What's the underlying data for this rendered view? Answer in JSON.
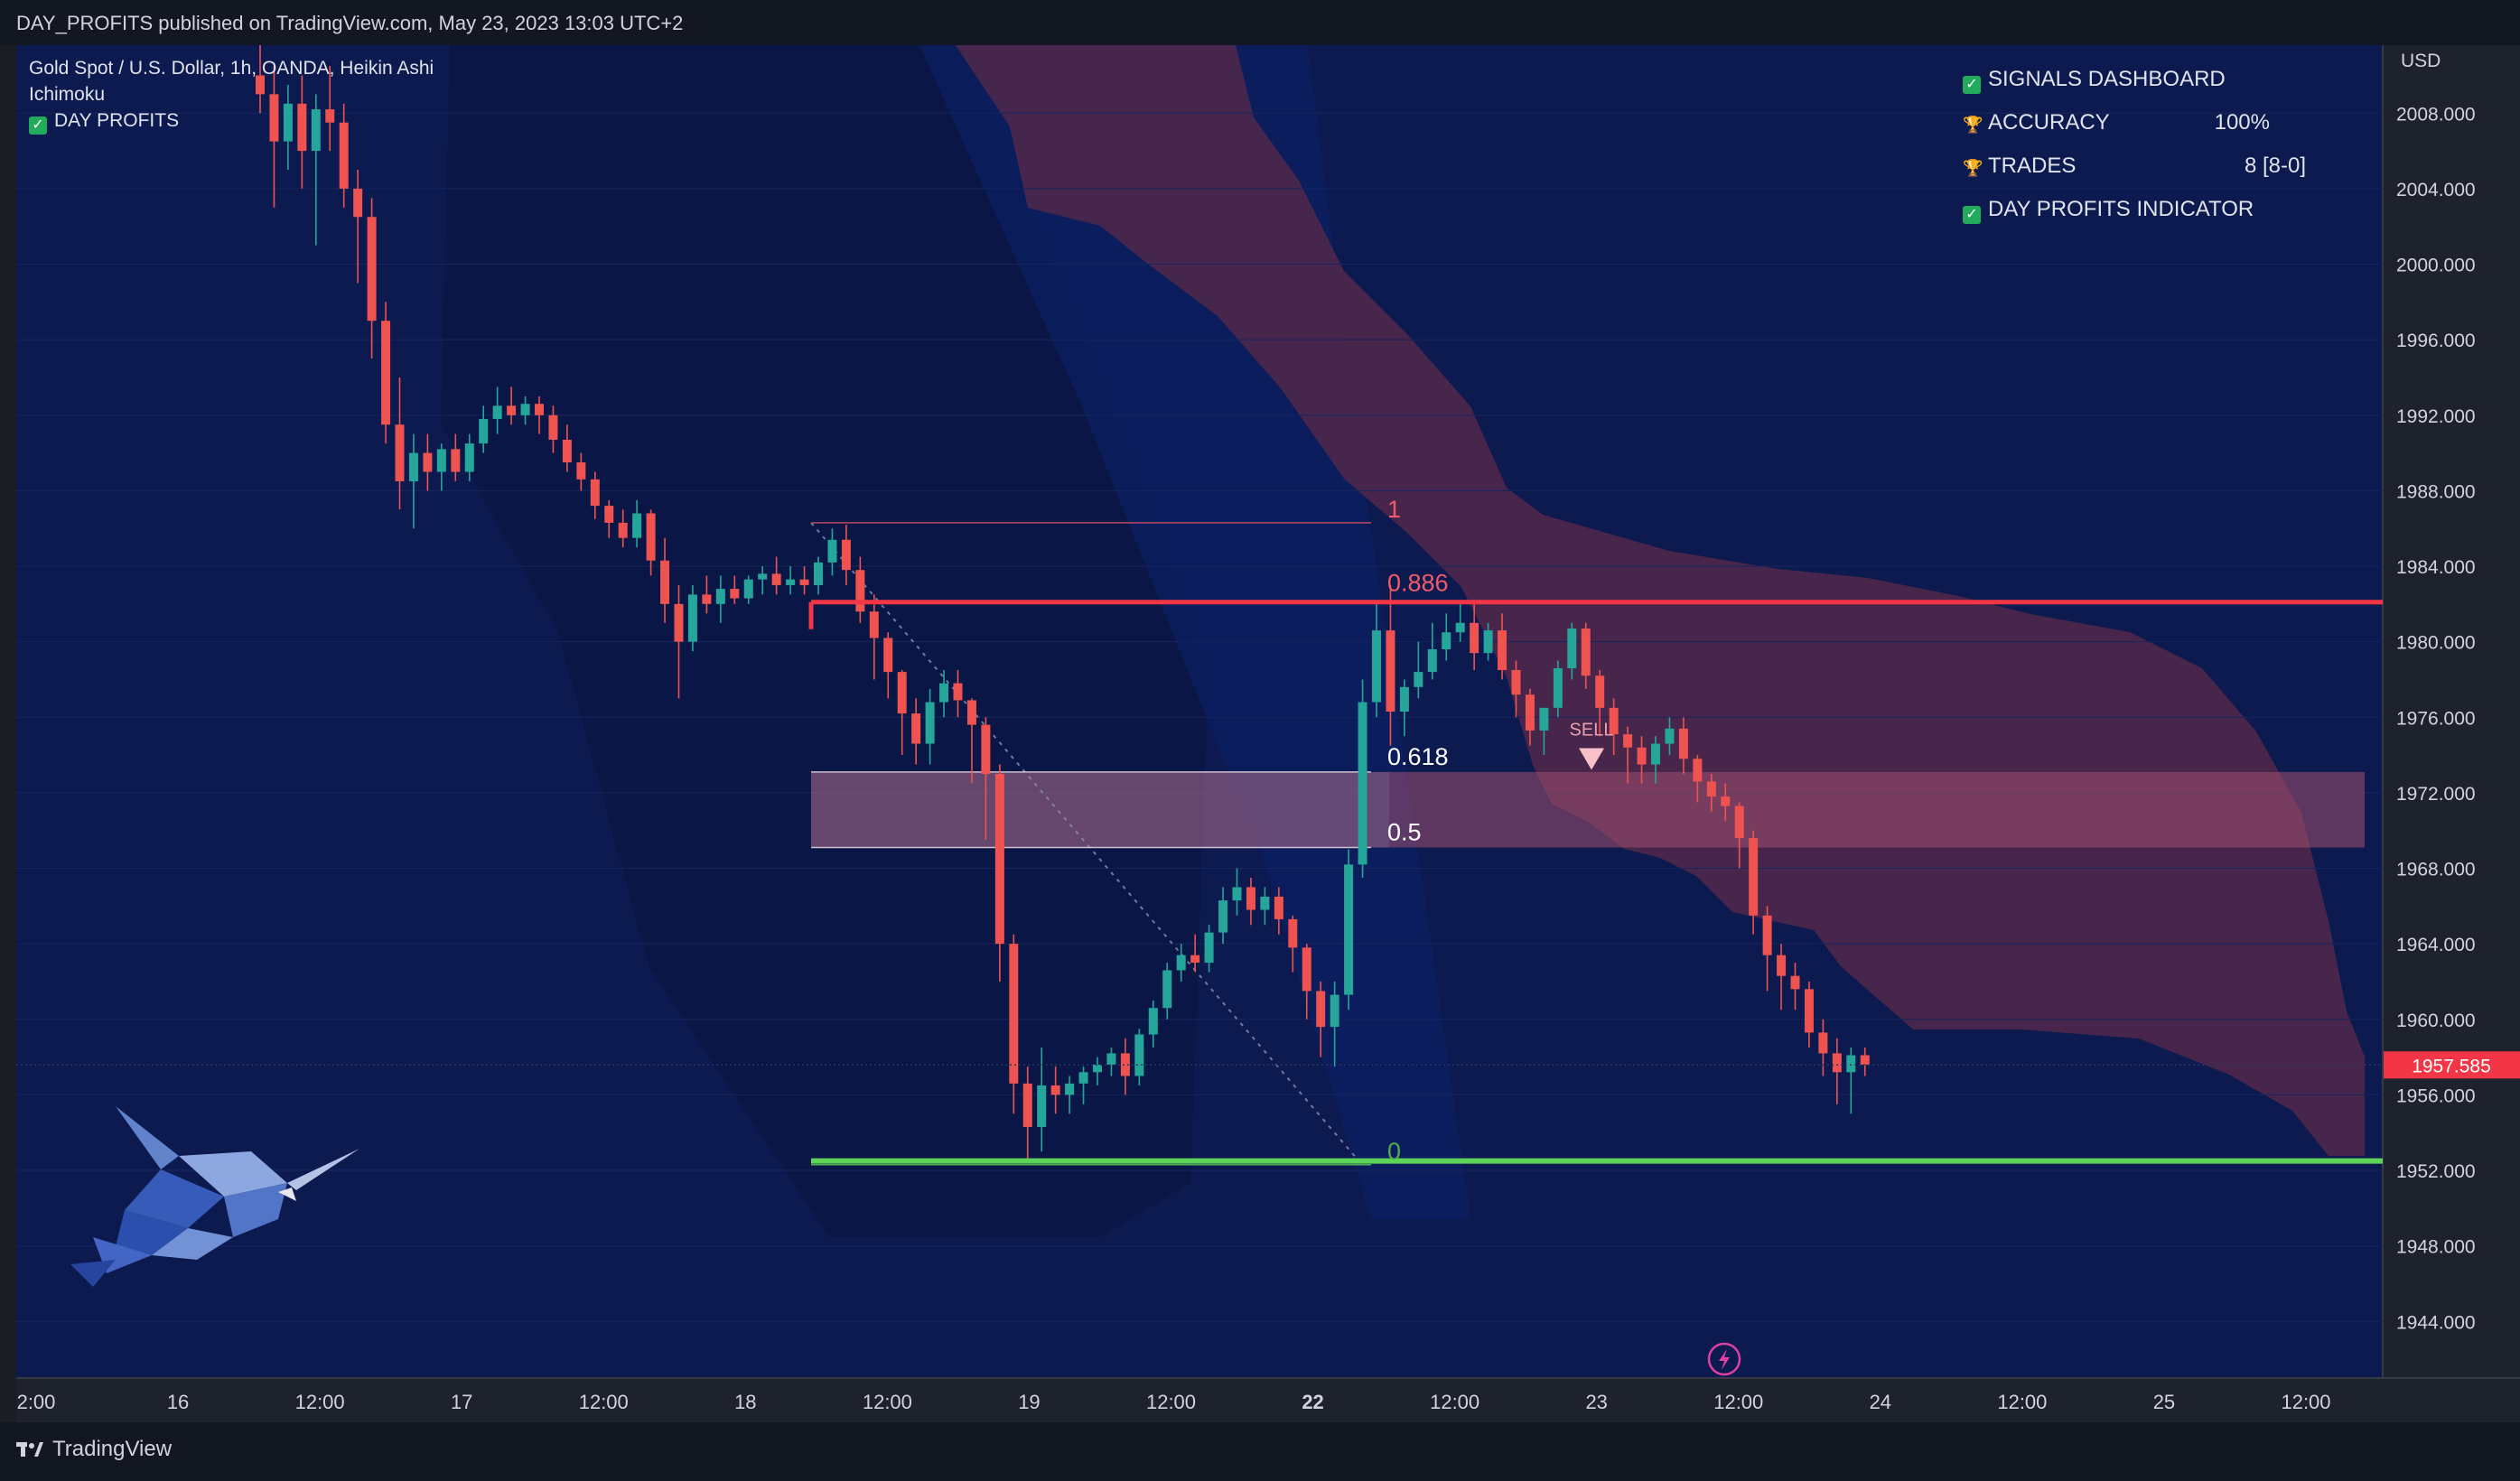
{
  "header": {
    "published": "DAY_PROFITS published on TradingView.com, May 23, 2023 13:03 UTC+2"
  },
  "legend": {
    "symbol": "Gold Spot / U.S. Dollar, 1h, OANDA, Heikin Ashi",
    "indicator": "Ichimoku",
    "script": "DAY PROFITS"
  },
  "dashboard": {
    "title": "SIGNALS DASHBOARD",
    "rows": [
      {
        "label": "ACCURACY",
        "value": "100%"
      },
      {
        "label": "TRADES",
        "value": "8 [8-0]"
      }
    ],
    "footer": "DAY PROFITS INDICATOR"
  },
  "footer": {
    "brand": "TradingView"
  },
  "colors": {
    "bg": "#0c1a4f",
    "up": "#26a69a",
    "down": "#ef5350",
    "resistance": "#f23645",
    "support": "#4caf50",
    "cloud": "#5c2a4a"
  },
  "chart_data": {
    "type": "candlestick",
    "symbol": "XAUUSD",
    "timeframe": "1h",
    "style": "Heikin Ashi",
    "y_axis": {
      "currency": "USD",
      "ticks": [
        2008,
        2004,
        2000,
        1996,
        1992,
        1988,
        1984,
        1980,
        1976,
        1972,
        1968,
        1964,
        1960,
        1956,
        1952,
        1948,
        1944
      ],
      "range": [
        1941.0,
        2011.6
      ],
      "decimals": 3
    },
    "x_axis": {
      "ticks": [
        "2:00",
        "16",
        "12:00",
        "17",
        "12:00",
        "18",
        "12:00",
        "19",
        "12:00",
        "22",
        "12:00",
        "23",
        "12:00",
        "24",
        "12:00",
        "25",
        "12:00"
      ]
    },
    "last_price": "1957.585",
    "fib_levels": [
      {
        "label": "1",
        "value": 1986.3
      },
      {
        "label": "0.886",
        "value": 1982.4
      },
      {
        "label": "0.618",
        "value": 1973.2
      },
      {
        "label": "0.5",
        "value": 1969.2
      },
      {
        "label": "0",
        "value": 1952.3
      }
    ],
    "zone": [
      1969.1,
      1973.1
    ],
    "resistance": 1982.1,
    "support": 1952.5,
    "signal": {
      "label": "SELL",
      "at_price": 1973.5
    },
    "candles": [
      [
        2010.0,
        2012.0,
        2008.0,
        2009.0
      ],
      [
        2009.0,
        2010.5,
        2003.0,
        2006.5
      ],
      [
        2006.5,
        2009.5,
        2005.0,
        2008.5
      ],
      [
        2008.5,
        2010.0,
        2004.0,
        2006.0
      ],
      [
        2006.0,
        2009.0,
        2001.0,
        2008.2
      ],
      [
        2008.2,
        2010.5,
        2006.0,
        2007.5
      ],
      [
        2007.5,
        2008.5,
        2003.0,
        2004.0
      ],
      [
        2004.0,
        2005.0,
        1999.0,
        2002.5
      ],
      [
        2002.5,
        2003.5,
        1995.0,
        1997.0
      ],
      [
        1997.0,
        1998.0,
        1990.5,
        1991.5
      ],
      [
        1991.5,
        1994.0,
        1987.0,
        1988.5
      ],
      [
        1988.5,
        1991.0,
        1986.0,
        1990.0
      ],
      [
        1990.0,
        1991.0,
        1988.0,
        1989.0
      ],
      [
        1989.0,
        1990.5,
        1988.0,
        1990.2
      ],
      [
        1990.2,
        1991.0,
        1988.5,
        1989.0
      ],
      [
        1989.0,
        1991.0,
        1988.5,
        1990.5
      ],
      [
        1990.5,
        1992.5,
        1990.0,
        1991.8
      ],
      [
        1991.8,
        1993.5,
        1991.0,
        1992.5
      ],
      [
        1992.5,
        1993.5,
        1991.5,
        1992.0
      ],
      [
        1992.0,
        1993.0,
        1991.5,
        1992.6
      ],
      [
        1992.6,
        1993.0,
        1991.0,
        1992.0
      ],
      [
        1992.0,
        1992.5,
        1990.0,
        1990.7
      ],
      [
        1990.7,
        1991.5,
        1989.0,
        1989.5
      ],
      [
        1989.5,
        1990.0,
        1988.0,
        1988.6
      ],
      [
        1988.6,
        1989.0,
        1986.5,
        1987.2
      ],
      [
        1987.2,
        1987.5,
        1985.5,
        1986.3
      ],
      [
        1986.3,
        1987.0,
        1985.0,
        1985.5
      ],
      [
        1985.5,
        1987.5,
        1985.0,
        1986.8
      ],
      [
        1986.8,
        1987.0,
        1983.5,
        1984.3
      ],
      [
        1984.3,
        1985.5,
        1981.0,
        1982.0
      ],
      [
        1982.0,
        1983.0,
        1977.0,
        1980.0
      ],
      [
        1980.0,
        1983.0,
        1979.5,
        1982.5
      ],
      [
        1982.5,
        1983.5,
        1981.5,
        1982.0
      ],
      [
        1982.0,
        1983.5,
        1981.0,
        1982.8
      ],
      [
        1982.8,
        1983.5,
        1982.0,
        1982.3
      ],
      [
        1982.3,
        1983.5,
        1982.0,
        1983.3
      ],
      [
        1983.3,
        1984.0,
        1982.5,
        1983.6
      ],
      [
        1983.6,
        1984.5,
        1982.5,
        1983.0
      ],
      [
        1983.0,
        1984.0,
        1982.5,
        1983.3
      ],
      [
        1983.3,
        1984.0,
        1982.5,
        1983.0
      ],
      [
        1983.0,
        1984.5,
        1982.5,
        1984.2
      ],
      [
        1984.2,
        1986.0,
        1983.5,
        1985.4
      ],
      [
        1985.4,
        1986.2,
        1983.0,
        1983.8
      ],
      [
        1983.8,
        1984.5,
        1981.0,
        1981.6
      ],
      [
        1981.6,
        1982.5,
        1978.0,
        1980.2
      ],
      [
        1980.2,
        1980.5,
        1977.0,
        1978.4
      ],
      [
        1978.4,
        1978.5,
        1974.0,
        1976.2
      ],
      [
        1976.2,
        1977.0,
        1973.5,
        1974.6
      ],
      [
        1974.6,
        1977.5,
        1973.5,
        1976.8
      ],
      [
        1976.8,
        1978.5,
        1976.0,
        1977.8
      ],
      [
        1977.8,
        1978.5,
        1976.0,
        1976.9
      ],
      [
        1976.9,
        1977.0,
        1972.5,
        1975.6
      ],
      [
        1975.6,
        1976.0,
        1969.5,
        1973.0
      ],
      [
        1973.0,
        1973.5,
        1962.0,
        1964.0
      ],
      [
        1964.0,
        1964.5,
        1955.0,
        1956.6
      ],
      [
        1956.6,
        1957.5,
        1952.5,
        1954.3
      ],
      [
        1954.3,
        1958.5,
        1953.0,
        1956.5
      ],
      [
        1956.5,
        1957.5,
        1955.0,
        1956.0
      ],
      [
        1956.0,
        1957.0,
        1955.0,
        1956.6
      ],
      [
        1956.6,
        1957.5,
        1955.5,
        1957.2
      ],
      [
        1957.2,
        1958.0,
        1956.5,
        1957.6
      ],
      [
        1957.6,
        1958.5,
        1957.0,
        1958.2
      ],
      [
        1958.2,
        1959.0,
        1956.0,
        1957.0
      ],
      [
        1957.0,
        1959.5,
        1956.5,
        1959.2
      ],
      [
        1959.2,
        1961.0,
        1958.5,
        1960.6
      ],
      [
        1960.6,
        1963.0,
        1960.0,
        1962.6
      ],
      [
        1962.6,
        1964.0,
        1962.0,
        1963.4
      ],
      [
        1963.4,
        1964.5,
        1962.5,
        1963.0
      ],
      [
        1963.0,
        1965.0,
        1962.5,
        1964.6
      ],
      [
        1964.6,
        1967.0,
        1964.0,
        1966.3
      ],
      [
        1966.3,
        1968.0,
        1965.5,
        1967.0
      ],
      [
        1967.0,
        1967.5,
        1965.0,
        1965.8
      ],
      [
        1965.8,
        1967.0,
        1965.0,
        1966.5
      ],
      [
        1966.5,
        1967.0,
        1964.5,
        1965.3
      ],
      [
        1965.3,
        1965.5,
        1962.5,
        1963.8
      ],
      [
        1963.8,
        1964.0,
        1960.0,
        1961.5
      ],
      [
        1961.5,
        1962.0,
        1958.0,
        1959.6
      ],
      [
        1959.6,
        1962.0,
        1957.5,
        1961.3
      ],
      [
        1961.3,
        1969.0,
        1960.5,
        1968.2
      ],
      [
        1968.2,
        1978.0,
        1967.5,
        1976.8
      ],
      [
        1976.8,
        1982.0,
        1976.0,
        1980.6
      ],
      [
        1980.6,
        1983.0,
        1974.5,
        1976.3
      ],
      [
        1976.3,
        1978.0,
        1975.0,
        1977.6
      ],
      [
        1977.6,
        1980.0,
        1977.0,
        1978.4
      ],
      [
        1978.4,
        1981.0,
        1978.0,
        1979.6
      ],
      [
        1979.6,
        1981.5,
        1979.0,
        1980.5
      ],
      [
        1980.5,
        1982.0,
        1980.0,
        1981.0
      ],
      [
        1981.0,
        1982.0,
        1978.5,
        1979.4
      ],
      [
        1979.4,
        1981.0,
        1979.0,
        1980.6
      ],
      [
        1980.6,
        1981.5,
        1978.0,
        1978.5
      ],
      [
        1978.5,
        1979.0,
        1976.0,
        1977.2
      ],
      [
        1977.2,
        1977.5,
        1974.5,
        1975.3
      ],
      [
        1975.3,
        1976.5,
        1974.0,
        1976.5
      ],
      [
        1976.5,
        1979.0,
        1976.0,
        1978.6
      ],
      [
        1978.6,
        1981.0,
        1978.0,
        1980.7
      ],
      [
        1980.7,
        1981.0,
        1977.5,
        1978.2
      ],
      [
        1978.2,
        1978.5,
        1975.0,
        1976.5
      ],
      [
        1976.5,
        1977.0,
        1974.0,
        1975.1
      ],
      [
        1975.1,
        1975.5,
        1972.5,
        1974.4
      ],
      [
        1974.4,
        1975.0,
        1972.5,
        1973.5
      ],
      [
        1973.5,
        1975.0,
        1972.5,
        1974.6
      ],
      [
        1974.6,
        1976.0,
        1974.0,
        1975.4
      ],
      [
        1975.4,
        1976.0,
        1973.0,
        1973.8
      ],
      [
        1973.8,
        1974.0,
        1971.5,
        1972.6
      ],
      [
        1972.6,
        1973.0,
        1971.0,
        1971.8
      ],
      [
        1971.8,
        1972.5,
        1970.5,
        1971.3
      ],
      [
        1971.3,
        1971.5,
        1968.0,
        1969.6
      ],
      [
        1969.6,
        1970.0,
        1964.5,
        1965.5
      ],
      [
        1965.5,
        1966.0,
        1961.5,
        1963.4
      ],
      [
        1963.4,
        1964.0,
        1960.5,
        1962.3
      ],
      [
        1962.3,
        1963.0,
        1960.5,
        1961.6
      ],
      [
        1961.6,
        1962.0,
        1958.5,
        1959.3
      ],
      [
        1959.3,
        1960.0,
        1957.0,
        1958.2
      ],
      [
        1958.2,
        1959.0,
        1955.5,
        1957.2
      ],
      [
        1957.2,
        1958.5,
        1955.0,
        1958.1
      ],
      [
        1958.1,
        1958.5,
        1957.0,
        1957.6
      ]
    ]
  }
}
